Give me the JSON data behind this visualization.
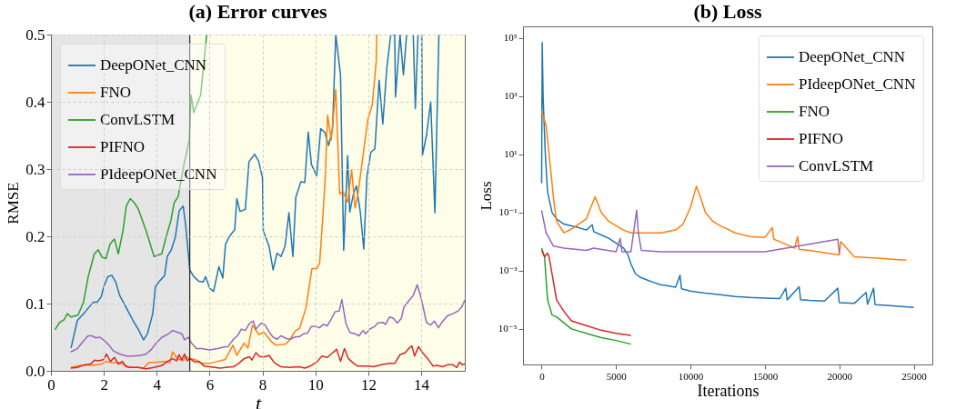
{
  "chart_data": [
    {
      "type": "line",
      "title": "(a) Error curves",
      "xlabel": "t",
      "ylabel": "RMSE",
      "xlim": [
        0,
        15.65
      ],
      "ylim": [
        0,
        0.5
      ],
      "xticks": [
        0,
        2,
        4,
        6,
        8,
        10,
        12,
        14
      ],
      "yticks": [
        {
          "value": 0,
          "label": "0.0"
        },
        0.1,
        0.2,
        0.3,
        0.4,
        0.5
      ],
      "grid": true,
      "legend": "top left",
      "bands": [
        {
          "axis": "x",
          "from": 0,
          "to": 5.25,
          "color": "#e5e5e5"
        },
        {
          "axis": "x",
          "from": 5.25,
          "to": 15.65,
          "color": "#fdfde8"
        }
      ],
      "ref_lines": [
        {
          "axis": "x",
          "value": 5.25,
          "color": "#222222"
        }
      ],
      "series": [
        {
          "name": "DeepONet_CNN",
          "color": "#1f77b4",
          "x": [
            0.76,
            1.0,
            1.3,
            1.6,
            1.75,
            1.9,
            2.0,
            2.15,
            2.3,
            2.45,
            2.6,
            2.9,
            3.1,
            3.3,
            3.5,
            3.65,
            3.85,
            3.95,
            4.1,
            4.3,
            4.4,
            4.55,
            4.7,
            4.85,
            5.0,
            5.1,
            5.25,
            5.4,
            5.6,
            5.75,
            5.85,
            6.0,
            6.15,
            6.35,
            6.5,
            6.6,
            6.75,
            6.95,
            7.03,
            7.15,
            7.35,
            7.49,
            7.7,
            7.85,
            8.0,
            8.03,
            8.25,
            8.4,
            8.55,
            8.7,
            8.85,
            9.0,
            9.15,
            9.26,
            9.45,
            9.6,
            9.73,
            9.85,
            10.05,
            10.2,
            10.35,
            10.5,
            10.65,
            10.77,
            10.95,
            11.07,
            11.22,
            11.3,
            11.45,
            11.55,
            11.7,
            11.83,
            11.95,
            12.1,
            12.25,
            12.41,
            12.55,
            12.7,
            12.85,
            13.0,
            13.03,
            13.2,
            13.33,
            13.45,
            13.55,
            13.7,
            13.78,
            13.88,
            13.95,
            14.02,
            14.05,
            14.2,
            14.36,
            14.52,
            14.67
          ],
          "values": [
            0.034,
            0.075,
            0.088,
            0.102,
            0.102,
            0.11,
            0.125,
            0.14,
            0.142,
            0.132,
            0.112,
            0.09,
            0.075,
            0.062,
            0.046,
            0.055,
            0.085,
            0.125,
            0.133,
            0.142,
            0.17,
            0.18,
            0.198,
            0.238,
            0.245,
            0.215,
            0.15,
            0.14,
            0.133,
            0.132,
            0.14,
            0.123,
            0.118,
            0.155,
            0.138,
            0.188,
            0.2,
            0.21,
            0.256,
            0.237,
            0.24,
            0.311,
            0.322,
            0.312,
            0.287,
            0.208,
            0.185,
            0.15,
            0.175,
            0.17,
            0.185,
            0.235,
            0.17,
            0.258,
            0.281,
            0.28,
            0.355,
            0.307,
            0.29,
            0.36,
            0.355,
            0.335,
            0.36,
            0.5,
            0.44,
            0.179,
            0.32,
            0.236,
            0.265,
            0.275,
            0.236,
            0.181,
            0.29,
            0.325,
            0.33,
            0.432,
            0.367,
            0.45,
            0.5,
            0.5,
            0.407,
            0.5,
            0.44,
            0.5,
            null,
            0.5,
            0.39,
            0.5,
            null,
            0.5,
            0.321,
            0.35,
            0.4,
            0.235,
            0.5
          ]
        },
        {
          "name": "FNO",
          "color": "#ff7f0e",
          "x": [
            0.75,
            1.0,
            1.3,
            1.6,
            1.9,
            2.1,
            2.3,
            2.6,
            2.8,
            3.0,
            3.3,
            3.5,
            3.7,
            4.0,
            4.3,
            4.5,
            4.6,
            4.8,
            5.0,
            5.1,
            5.3,
            5.5,
            5.7,
            6.0,
            6.3,
            6.6,
            6.88,
            7.03,
            7.3,
            7.45,
            7.62,
            7.86,
            8.06,
            8.35,
            8.52,
            8.88,
            9.05,
            9.23,
            9.4,
            9.64,
            9.87,
            10.05,
            10.16,
            10.28,
            10.37,
            10.46,
            10.6,
            10.77,
            10.92,
            11.04,
            11.22,
            11.37,
            11.5,
            11.6,
            11.98,
            12.15,
            12.3,
            12.32
          ],
          "values": [
            0.005,
            0.007,
            0.009,
            0.008,
            0.01,
            0.014,
            0.012,
            0.012,
            0.008,
            0.005,
            0.005,
            0.004,
            0.012,
            0.013,
            0.014,
            0.012,
            0.028,
            0.018,
            0.015,
            0.021,
            0.018,
            0.016,
            0.011,
            0.011,
            0.014,
            0.017,
            0.038,
            0.023,
            0.041,
            0.034,
            0.068,
            0.054,
            0.057,
            0.043,
            0.038,
            0.04,
            0.047,
            0.059,
            0.063,
            0.093,
            0.152,
            0.152,
            0.16,
            0.228,
            0.285,
            0.38,
            0.343,
            0.418,
            0.263,
            0.267,
            0.251,
            0.299,
            0.242,
            0.26,
            0.373,
            0.396,
            0.46,
            0.5
          ]
        },
        {
          "name": "ConvLSTM",
          "color": "#2ca02c",
          "x": [
            0.15,
            0.33,
            0.5,
            0.62,
            0.76,
            1.03,
            1.23,
            1.41,
            1.64,
            1.79,
            1.93,
            2.08,
            2.24,
            2.4,
            2.55,
            2.73,
            2.85,
            3.0,
            3.17,
            3.31,
            3.6,
            3.9,
            4.19,
            4.37,
            4.54,
            4.66,
            4.81,
            5.01,
            5.23,
            5.3,
            5.4,
            5.66,
            5.89
          ],
          "values": [
            0.061,
            0.072,
            0.076,
            0.085,
            0.08,
            0.083,
            0.102,
            0.14,
            0.174,
            0.18,
            0.169,
            0.167,
            0.189,
            0.196,
            0.174,
            0.21,
            0.245,
            0.256,
            0.249,
            0.24,
            0.208,
            0.17,
            0.174,
            0.201,
            0.224,
            0.25,
            0.259,
            0.303,
            0.343,
            0.41,
            0.384,
            0.41,
            0.5
          ]
        },
        {
          "name": "PIFNO",
          "color": "#d62728",
          "x": [
            0.75,
            1.0,
            1.2,
            1.5,
            1.65,
            1.8,
            2.0,
            2.1,
            2.25,
            2.4,
            2.55,
            2.7,
            2.85,
            3.0,
            3.3,
            3.6,
            3.9,
            4.2,
            4.4,
            4.6,
            4.75,
            4.85,
            4.95,
            5.05,
            5.15,
            5.25,
            5.45,
            5.6,
            5.8,
            6.0,
            6.2,
            6.4,
            6.6,
            6.9,
            7.1,
            7.3,
            7.5,
            7.6,
            7.75,
            7.9,
            8.1,
            8.25,
            8.45,
            8.7,
            9.0,
            9.4,
            9.6,
            9.8,
            10.05,
            10.25,
            10.45,
            10.6,
            10.8,
            10.95,
            11.1,
            11.25,
            11.45,
            11.6,
            12.0,
            12.2,
            12.5,
            12.8,
            13.0,
            13.2,
            13.4,
            13.55,
            13.65,
            13.75,
            13.9,
            14.05,
            14.25,
            14.45,
            14.6,
            14.8,
            15.0,
            15.2,
            15.35,
            15.45,
            15.55,
            15.65
          ],
          "values": [
            0.004,
            0.005,
            0.008,
            0.01,
            0.016,
            0.015,
            0.017,
            0.025,
            0.014,
            0.02,
            0.01,
            0.014,
            0.006,
            0.005,
            0.005,
            0.003,
            0.005,
            0.008,
            0.014,
            0.018,
            0.015,
            0.024,
            0.016,
            0.025,
            0.015,
            0.018,
            0.013,
            0.014,
            0.007,
            0.006,
            0.005,
            0.004,
            0.005,
            0.006,
            0.011,
            0.018,
            0.021,
            0.016,
            0.027,
            0.021,
            0.021,
            0.023,
            0.012,
            0.006,
            0.005,
            0.006,
            0.004,
            0.007,
            0.013,
            0.022,
            0.02,
            0.025,
            0.032,
            0.014,
            0.033,
            0.018,
            0.011,
            0.007,
            0.007,
            0.006,
            0.009,
            0.011,
            0.011,
            0.024,
            0.027,
            0.034,
            0.037,
            0.022,
            0.036,
            0.027,
            0.018,
            0.007,
            0.008,
            0.006,
            0.009,
            0.009,
            0.005,
            0.013,
            0.009,
            0.01
          ]
        },
        {
          "name": "PIdeepONet_CNN",
          "color": "#9467bd",
          "x": [
            0.75,
            1.0,
            1.2,
            1.4,
            1.55,
            1.7,
            1.85,
            2.05,
            2.2,
            2.35,
            2.6,
            2.85,
            3.1,
            3.4,
            3.6,
            3.8,
            3.95,
            4.2,
            4.45,
            4.6,
            4.8,
            4.95,
            5.05,
            5.2,
            5.3,
            5.5,
            5.7,
            6.0,
            6.3,
            6.5,
            6.7,
            6.9,
            7.05,
            7.2,
            7.35,
            7.5,
            7.65,
            7.75,
            7.95,
            8.1,
            8.25,
            8.4,
            8.55,
            8.7,
            8.9,
            9.05,
            9.2,
            9.4,
            9.55,
            9.7,
            9.85,
            10.0,
            10.15,
            10.3,
            10.45,
            10.6,
            10.75,
            10.9,
            11.0,
            11.15,
            11.3,
            11.5,
            11.65,
            11.8,
            11.9,
            12.05,
            12.25,
            12.35,
            12.55,
            12.65,
            12.8,
            12.95,
            13.1,
            13.25,
            13.35,
            13.55,
            13.7,
            13.85,
            14.0,
            14.2,
            14.35,
            14.5,
            14.65,
            14.8,
            15.0,
            15.2,
            15.4,
            15.55,
            15.65
          ],
          "values": [
            0.028,
            0.033,
            0.043,
            0.052,
            0.052,
            0.049,
            0.05,
            0.044,
            0.038,
            0.03,
            0.025,
            0.022,
            0.022,
            0.023,
            0.025,
            0.032,
            0.04,
            0.05,
            0.055,
            0.06,
            0.057,
            0.055,
            0.046,
            0.05,
            0.042,
            0.033,
            0.033,
            0.031,
            0.033,
            0.035,
            0.036,
            0.047,
            0.052,
            0.062,
            0.06,
            0.07,
            0.074,
            0.062,
            0.071,
            0.068,
            0.058,
            0.05,
            0.047,
            0.052,
            0.048,
            0.047,
            0.05,
            0.051,
            0.055,
            0.056,
            0.066,
            0.066,
            0.064,
            0.069,
            0.067,
            0.077,
            0.088,
            0.089,
            0.106,
            0.071,
            0.057,
            0.055,
            0.052,
            0.06,
            0.055,
            0.062,
            0.066,
            0.071,
            0.072,
            0.069,
            0.08,
            0.078,
            0.071,
            0.078,
            0.095,
            0.105,
            0.112,
            0.128,
            0.108,
            0.072,
            0.068,
            0.074,
            0.064,
            0.073,
            0.082,
            0.085,
            0.089,
            0.096,
            0.105
          ]
        }
      ]
    },
    {
      "type": "line",
      "title": "(b) Loss",
      "xlabel": "Iterations",
      "ylabel": "Loss",
      "log": "y",
      "xlim": [
        -1250,
        26250
      ],
      "ylim": [
        6e-07,
        250000.0
      ],
      "xticks": [
        0,
        5000,
        10000,
        15000,
        20000,
        25000
      ],
      "yticks": [
        {
          "value": 1e-05,
          "label": "10⁻⁵"
        },
        {
          "value": 0.001,
          "label": "10⁻³"
        },
        {
          "value": 0.1,
          "label": "10⁻¹"
        },
        {
          "value": 10,
          "label": "10¹"
        },
        {
          "value": 1000,
          "label": "10³"
        },
        {
          "value": 100000,
          "label": "10⁵"
        }
      ],
      "grid": false,
      "legend": "top right",
      "series": [
        {
          "name": "DeepONet_CNN",
          "color": "#1f77b4",
          "x": [
            0,
            40,
            100,
            150,
            250,
            400,
            700,
            1000,
            1500,
            2000,
            2500,
            3000,
            3400,
            3500,
            4000,
            4500,
            5000,
            5500,
            5800,
            6000,
            6300,
            6600,
            7000,
            7500,
            8000,
            8500,
            9000,
            9300,
            9400,
            10000,
            11000,
            12000,
            13000,
            14000,
            15000,
            16000,
            16400,
            16500,
            17300,
            17400,
            18000,
            19000,
            19900,
            20000,
            21000,
            21800,
            21900,
            22300,
            22400,
            23000,
            24000,
            25000
          ],
          "values": [
            1,
            70000,
            1000,
            200,
            10,
            0.5,
            0.1,
            0.06,
            0.04,
            0.035,
            0.03,
            0.025,
            0.038,
            0.022,
            0.017,
            0.013,
            0.009,
            0.006,
            0.0035,
            0.0017,
            0.0008,
            0.0006,
            0.0005,
            0.0004,
            0.00033,
            0.0003,
            0.00027,
            0.0007,
            0.00024,
            0.0002,
            0.00017,
            0.00015,
            0.00013,
            0.00012,
            0.000115,
            0.00011,
            0.00025,
            0.0001,
            0.00028,
            0.0001,
            9.5e-05,
            9e-05,
            0.00025,
            8e-05,
            7.5e-05,
            0.00018,
            7e-05,
            0.00025,
            6.8e-05,
            6.5e-05,
            6e-05,
            5.5e-05
          ]
        },
        {
          "name": "PIdeepONet_CNN",
          "color": "#ff7f0e",
          "x": [
            0,
            100,
            300,
            500,
            700,
            800,
            1000,
            1500,
            2000,
            3000,
            3300,
            3600,
            4000,
            4500,
            5000,
            5500,
            6000,
            7000,
            8000,
            9000,
            9500,
            10000,
            10400,
            10700,
            11000,
            11500,
            12000,
            13000,
            14000,
            15000,
            15500,
            15600,
            16000,
            17000,
            17200,
            17300,
            18000,
            19000,
            20000,
            20100,
            21000,
            22000,
            23000,
            24000,
            24500
          ],
          "values": [
            300,
            200,
            100,
            10,
            1,
            0.3,
            0.05,
            0.02,
            0.027,
            0.06,
            0.15,
            0.35,
            0.1,
            0.05,
            0.035,
            0.025,
            0.02,
            0.02,
            0.02,
            0.025,
            0.04,
            0.15,
            0.8,
            0.3,
            0.1,
            0.05,
            0.035,
            0.02,
            0.015,
            0.014,
            0.03,
            0.012,
            0.01,
            0.006,
            0.015,
            0.0055,
            0.005,
            0.0042,
            0.0035,
            0.01,
            0.003,
            0.0028,
            0.0026,
            0.0024,
            0.0023
          ]
        },
        {
          "name": "FNO",
          "color": "#2ca02c",
          "x": [
            0,
            200,
            300,
            400,
            700,
            1000,
            2000,
            3000,
            4000,
            5000,
            6000
          ],
          "values": [
            0.006,
            0.003,
            0.0005,
            0.0001,
            3e-05,
            2.6e-05,
            1e-05,
            7e-06,
            5e-06,
            4e-06,
            3e-06
          ]
        },
        {
          "name": "PIFNO",
          "color": "#d62728",
          "x": [
            0,
            200,
            400,
            500,
            800,
            1000,
            1500,
            2000,
            3000,
            4000,
            5000,
            6000
          ],
          "values": [
            0.005,
            0.003,
            0.004,
            0.003,
            0.0004,
            0.0001,
            4e-05,
            1.9e-05,
            1.3e-05,
            9e-06,
            7e-06,
            6e-06
          ]
        },
        {
          "name": "ConvLSTM",
          "color": "#9467bd",
          "x": [
            0,
            300,
            800,
            1500,
            3000,
            3500,
            5000,
            5280,
            5400,
            6000,
            6385,
            6500,
            6700,
            8000,
            10000,
            15000,
            19900,
            20000
          ],
          "values": [
            0.12,
            0.02,
            0.007,
            0.006,
            0.005,
            0.006,
            0.0045,
            0.013,
            0.0045,
            0.0045,
            0.12,
            0.02,
            0.005,
            0.0045,
            0.0045,
            0.0045,
            0.012,
            0.004
          ]
        }
      ]
    }
  ]
}
